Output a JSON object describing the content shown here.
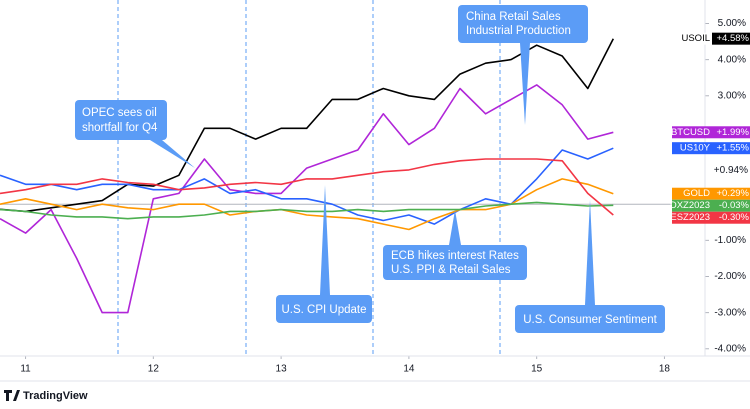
{
  "chart_data": {
    "type": "line",
    "x": [
      -0.2,
      0,
      0.2,
      0.4,
      0.6,
      0.8,
      1.0,
      1.2,
      1.4,
      1.6,
      1.8,
      2.0,
      2.2,
      2.4,
      2.6,
      2.8,
      3.0,
      3.2,
      3.4,
      3.6,
      3.8,
      4.0,
      4.2,
      4.4,
      4.6
    ],
    "xlim": [
      -0.2,
      5.2
    ],
    "xticks": [
      {
        "value": 0,
        "label": "11"
      },
      {
        "value": 1,
        "label": "12"
      },
      {
        "value": 2,
        "label": "13"
      },
      {
        "value": 3,
        "label": "14"
      },
      {
        "value": 4,
        "label": "15"
      },
      {
        "value": 5,
        "label": "18"
      }
    ],
    "ylim": [
      -4.2,
      5.65
    ],
    "yticks": [
      {
        "value": 5,
        "label": "5.00%"
      },
      {
        "value": 4,
        "label": "4.00%"
      },
      {
        "value": 3,
        "label": "3.00%"
      },
      {
        "value": -1,
        "label": "-1.00%"
      },
      {
        "value": -2,
        "label": "-2.00%"
      },
      {
        "value": -3,
        "label": "-3.00%"
      },
      {
        "value": -4,
        "label": "-4.00%"
      }
    ],
    "series": [
      {
        "name": "USOIL",
        "color": "#000000",
        "last_label": "+4.58%",
        "values": [
          -0.14,
          -0.2,
          -0.1,
          0,
          0.1,
          0.55,
          0.5,
          0.8,
          2.1,
          2.1,
          1.8,
          2.1,
          2.1,
          2.9,
          2.9,
          3.2,
          3.0,
          2.9,
          3.6,
          3.9,
          4.0,
          4.4,
          4.1,
          3.2,
          4.58
        ]
      },
      {
        "name": "BTCUSD",
        "color": "#b026d8",
        "last_label": "+1.99%",
        "values": [
          -0.4,
          -0.8,
          -0.15,
          -1.5,
          -3.0,
          -3.0,
          0.15,
          0.3,
          1.25,
          0.4,
          0.3,
          0.3,
          1.0,
          1.25,
          1.5,
          2.5,
          1.65,
          2.1,
          3.2,
          2.5,
          2.9,
          3.3,
          2.75,
          1.8,
          1.99
        ]
      },
      {
        "name": "US10Y",
        "color": "#2962ff",
        "last_label": "+1.55%",
        "values": [
          0.8,
          0.55,
          0.55,
          0.4,
          0.55,
          0.55,
          0.4,
          0.4,
          0.7,
          0.3,
          0.4,
          0.15,
          0.15,
          0,
          -0.3,
          -0.45,
          -0.3,
          -0.55,
          -0.15,
          0.15,
          0,
          0.7,
          1.5,
          1.25,
          1.55
        ]
      },
      {
        "name": "GOLD",
        "color": "#ff9800",
        "last_label": "+0.29%",
        "values": [
          0,
          0.15,
          0,
          -0.15,
          0,
          -0.1,
          -0.15,
          0,
          0,
          -0.3,
          -0.2,
          -0.15,
          -0.3,
          -0.35,
          -0.4,
          -0.55,
          -0.7,
          -0.4,
          -0.15,
          -0.15,
          0,
          0.4,
          0.7,
          0.55,
          0.29
        ]
      },
      {
        "name": "DXZ2023",
        "color": "#4caf50",
        "last_label": "-0.03%",
        "values": [
          -0.15,
          -0.2,
          -0.3,
          -0.35,
          -0.35,
          -0.4,
          -0.35,
          -0.35,
          -0.3,
          -0.2,
          -0.2,
          -0.15,
          -0.2,
          -0.2,
          -0.15,
          -0.2,
          -0.15,
          -0.15,
          -0.15,
          -0.05,
          0,
          0.05,
          0,
          -0.05,
          -0.03
        ]
      },
      {
        "name": "ESZ2023",
        "color": "#f23645",
        "last_label": "-0.30%",
        "values": [
          0.3,
          0.4,
          0.55,
          0.55,
          0.7,
          0.6,
          0.55,
          0.4,
          0.45,
          0.55,
          0.6,
          0.55,
          0.7,
          0.7,
          0.8,
          0.9,
          0.95,
          1.1,
          1.2,
          1.25,
          1.25,
          1.25,
          1.2,
          0.3,
          -0.3
        ]
      }
    ],
    "extra_marker": {
      "value": 0.94,
      "label": "+0.94%"
    },
    "annotations": [
      {
        "lines": [
          "OPEC sees oil",
          "shortfall for Q4"
        ]
      },
      {
        "lines": [
          "China Retail Sales",
          "Industrial Production"
        ]
      },
      {
        "lines": [
          "U.S. CPI Update"
        ]
      },
      {
        "lines": [
          "ECB hikes interest Rates",
          "U.S. PPI & Retail Sales"
        ]
      },
      {
        "lines": [
          "U.S. Consumer Sentiment"
        ]
      }
    ],
    "brand": "TradingView"
  }
}
